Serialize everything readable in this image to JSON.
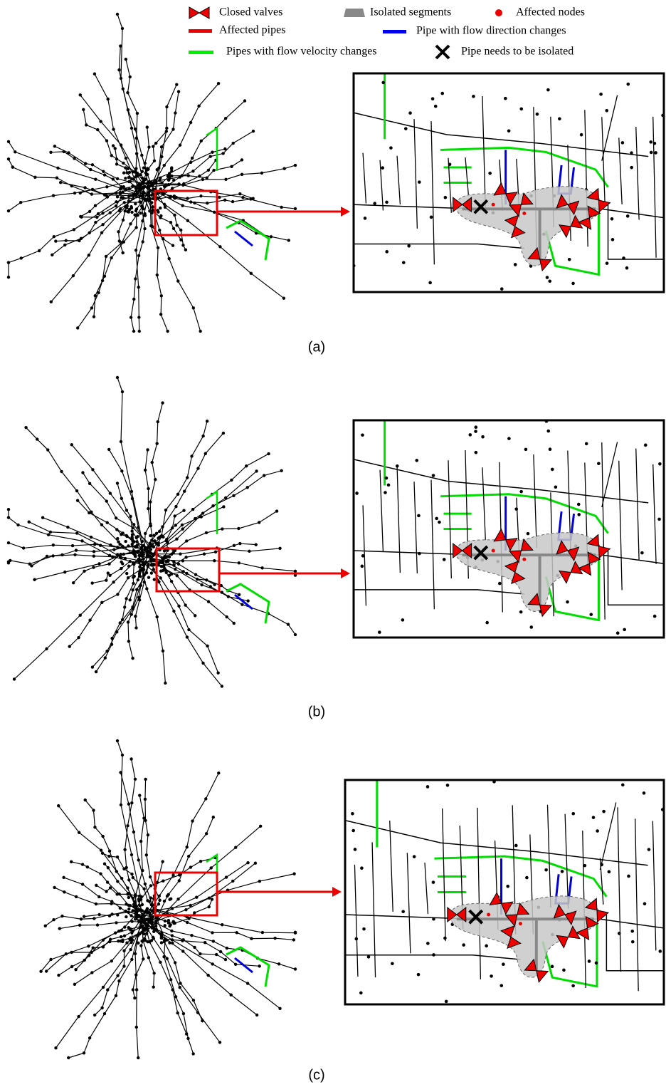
{
  "legend": {
    "items": [
      {
        "label": "Closed valves"
      },
      {
        "label": "Isolated segments"
      },
      {
        "label": "Affected nodes"
      },
      {
        "label": "Affected pipes"
      },
      {
        "label": "Pipe with flow direction changes"
      },
      {
        "label": "Pipes with flow velocity changes"
      },
      {
        "label": "Pipe needs to be isolated"
      }
    ]
  },
  "panels": [
    {
      "label": "(a)"
    },
    {
      "label": "(b)"
    },
    {
      "label": "(c)"
    }
  ]
}
